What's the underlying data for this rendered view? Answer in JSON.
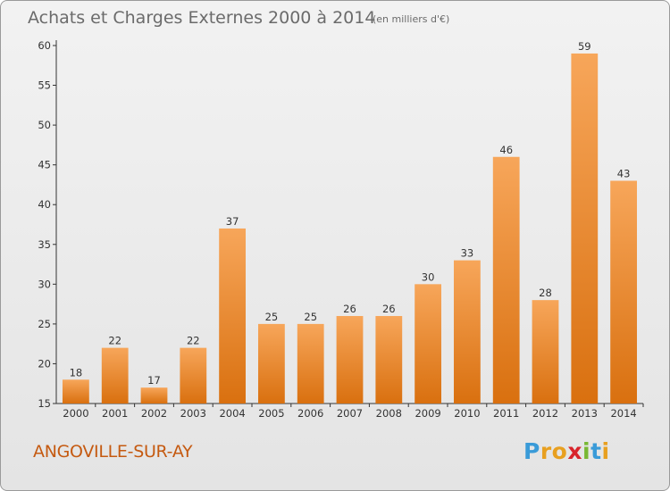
{
  "chart_data": {
    "type": "bar",
    "title": "Achats et Charges Externes 2000 à 2014",
    "subtitle": "(en milliers d'€)",
    "categories": [
      "2000",
      "2001",
      "2002",
      "2003",
      "2004",
      "2005",
      "2006",
      "2007",
      "2008",
      "2009",
      "2010",
      "2011",
      "2012",
      "2013",
      "2014"
    ],
    "values": [
      18,
      22,
      17,
      22,
      37,
      25,
      25,
      26,
      26,
      30,
      33,
      46,
      28,
      59,
      43
    ],
    "ylim": [
      15,
      60
    ],
    "yticks": [
      15,
      20,
      25,
      30,
      35,
      40,
      45,
      50,
      55,
      60
    ],
    "grid": false,
    "bar_color_top": "#f7a65a",
    "bar_color_bottom": "#d9700f"
  },
  "footer": {
    "location": "ANGOVILLE-SUR-AY",
    "brand_letters": [
      "P",
      "r",
      "o",
      "x",
      "i",
      "t",
      "i"
    ],
    "brand_colors": [
      "#3a9bd8",
      "#e8a020",
      "#e8a020",
      "#d8242b",
      "#79b833",
      "#3a9bd8",
      "#e8a020"
    ]
  }
}
